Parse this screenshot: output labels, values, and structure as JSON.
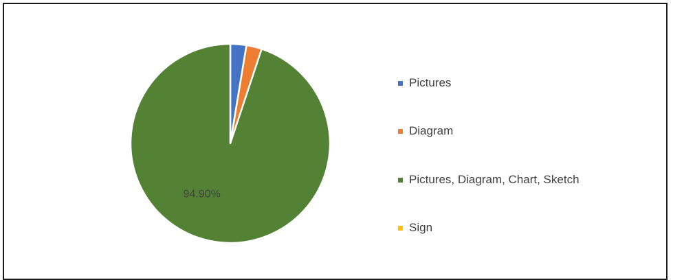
{
  "chart_data": {
    "type": "pie",
    "categories": [
      "Pictures",
      "Diagram",
      "Pictures, Diagram, Chart, Sketch",
      "Sign"
    ],
    "values": [
      2.6,
      2.5,
      94.9,
      0.0
    ],
    "colors": [
      "#4472c4",
      "#ed7d31",
      "#548235",
      "#ffc000"
    ],
    "data_labels": [
      "",
      "",
      "94.90%",
      ""
    ],
    "legend_position": "right",
    "title": ""
  }
}
